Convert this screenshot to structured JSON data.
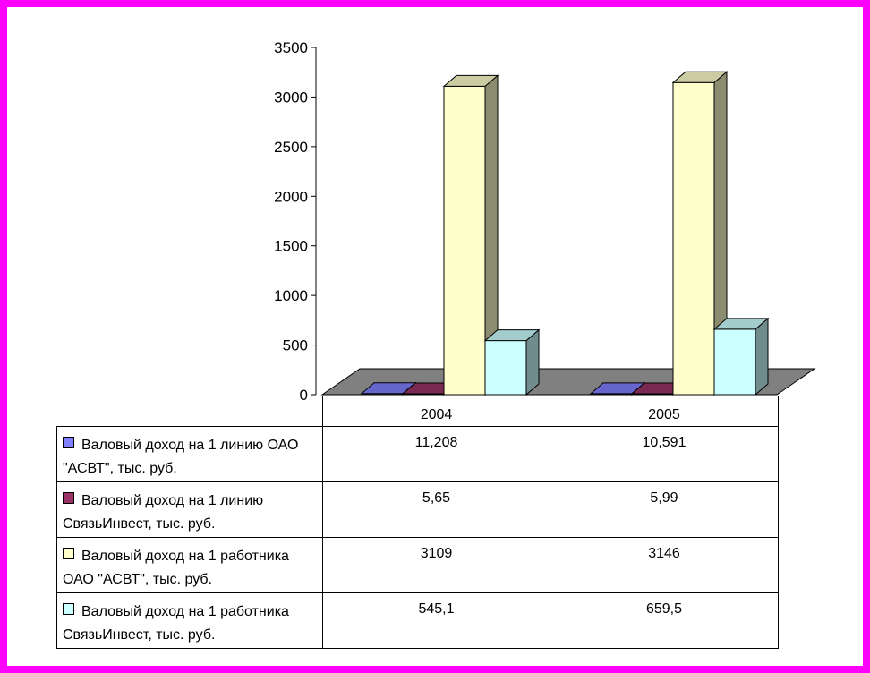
{
  "chart_data": {
    "type": "bar",
    "categories": [
      "2004",
      "2005"
    ],
    "series": [
      {
        "name": "Валовый доход на 1 линию ОАО \"АСВТ\", тыс. руб.",
        "values": [
          11.208,
          10.591
        ],
        "labels": [
          "11,208",
          "10,591"
        ],
        "color": "#8080ff"
      },
      {
        "name": "Валовый доход на 1 линию СвязьИнвест, тыс. руб.",
        "values": [
          5.65,
          5.99
        ],
        "labels": [
          "5,65",
          "5,99"
        ],
        "color": "#993366"
      },
      {
        "name": "Валовый доход на 1 работника ОАО \"АСВТ\", тыс. руб.",
        "values": [
          3109,
          3146
        ],
        "labels": [
          "3109",
          "3146"
        ],
        "color": "#ffffcc"
      },
      {
        "name": "Валовый доход на 1 работника СвязьИнвест, тыс. руб.",
        "values": [
          545.1,
          659.5
        ],
        "labels": [
          "545,1",
          "659,5"
        ],
        "color": "#ccffff"
      }
    ],
    "yticks": [
      "0",
      "500",
      "1000",
      "1500",
      "2000",
      "2500",
      "3000",
      "3500"
    ],
    "ylim": [
      0,
      3500
    ],
    "grid": false,
    "legend": "data-table",
    "three_d": true
  },
  "colors": {
    "background": "#ffffff",
    "border": "#ff00ff",
    "floor": "#808080"
  }
}
